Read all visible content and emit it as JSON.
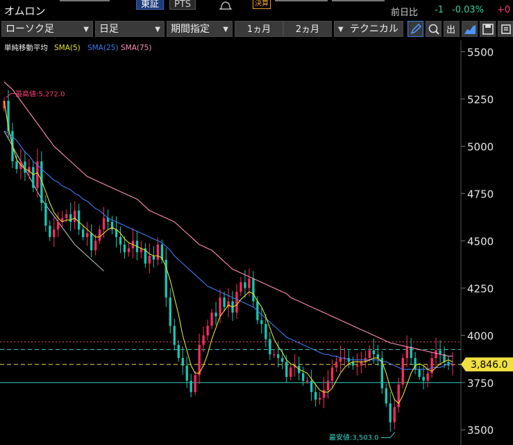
{
  "header": {
    "title": "オムロン",
    "exchange_tabs": [
      "東証",
      "PTS"
    ],
    "badge": "決算",
    "change_label": "前日比",
    "change_value": "-1",
    "change_pct": "-0.03%",
    "change_more": "+0"
  },
  "toolbar": {
    "chart_type": "ローソク足",
    "period": "日足",
    "range_label": "期間指定",
    "range_buttons": [
      "1ヵ月",
      "2ヵ月"
    ],
    "technical": "テクニカル",
    "icons": [
      "pen-icon",
      "search-icon",
      "output-icon",
      "area-chart-icon",
      "save-icon",
      "settings-icon"
    ]
  },
  "chart_data": {
    "type": "candlestick",
    "legend": [
      {
        "label": "単純移動平均",
        "color": "#f0f0f0"
      },
      {
        "label": "SMA(5)",
        "color": "#e8e030"
      },
      {
        "label": "SMA(25)",
        "color": "#3d7cf0"
      },
      {
        "label": "SMA(75)",
        "color": "#ff8fb8"
      }
    ],
    "y_ticks": [
      5500,
      5250,
      5000,
      4750,
      4500,
      4250,
      4000,
      3750,
      3500
    ],
    "ylim": [
      3420,
      5560
    ],
    "high_annotation": "最高値:5,272.0",
    "low_annotation": "最安値:3,503.0",
    "high": 5272,
    "low": 3503,
    "current_price": 3846,
    "current_price_label": "3,846.0",
    "reference_lines": [
      {
        "value": 3965,
        "color": "#ff4d6d",
        "style": "dotted"
      },
      {
        "value": 3925,
        "color": "#35d6c8",
        "style": "dashed"
      },
      {
        "value": 3846,
        "color": "#f0e040",
        "style": "dashed"
      },
      {
        "value": 3750,
        "color": "#35d6c8",
        "style": "solid"
      }
    ],
    "candles_close": [
      5240,
      5080,
      4920,
      4880,
      4920,
      4860,
      4890,
      4780,
      4920,
      4700,
      4580,
      4520,
      4560,
      4600,
      4620,
      4640,
      4600,
      4660,
      4560,
      4520,
      4540,
      4450,
      4500,
      4560,
      4620,
      4600,
      4560,
      4520,
      4480,
      4440,
      4460,
      4500,
      4440,
      4460,
      4380,
      4420,
      4400,
      4480,
      4400,
      4200,
      4050,
      3950,
      3880,
      3840,
      3760,
      3700,
      3790,
      3950,
      4000,
      4050,
      4120,
      4100,
      4200,
      4150,
      4180,
      4120,
      4230,
      4280,
      4250,
      4300,
      4180,
      4080,
      4060,
      3980,
      3900,
      3900,
      3880,
      3860,
      3780,
      3830,
      3840,
      3800,
      3760,
      3760,
      3700,
      3660,
      3670,
      3710,
      3760,
      3830,
      3860,
      3880,
      3880,
      3860,
      3840,
      3840,
      3860,
      3880,
      3920,
      3900,
      3880,
      3720,
      3640,
      3540,
      3620,
      3740,
      3880,
      3940,
      3880,
      3820,
      3780,
      3760,
      3800,
      3880,
      3920,
      3900,
      3860,
      3840,
      3846
    ],
    "sma5": [
      5240,
      5100,
      5000,
      4930,
      4900,
      4880,
      4870,
      4850,
      4860,
      4820,
      4760,
      4700,
      4650,
      4620,
      4600,
      4610,
      4610,
      4620,
      4600,
      4580,
      4560,
      4540,
      4520,
      4520,
      4540,
      4560,
      4570,
      4560,
      4540,
      4510,
      4490,
      4480,
      4470,
      4460,
      4450,
      4430,
      4420,
      4420,
      4410,
      4360,
      4290,
      4200,
      4110,
      4000,
      3920,
      3840,
      3800,
      3800,
      3840,
      3900,
      3980,
      4040,
      4100,
      4130,
      4160,
      4150,
      4160,
      4190,
      4210,
      4230,
      4220,
      4180,
      4150,
      4100,
      4040,
      3980,
      3940,
      3910,
      3870,
      3850,
      3840,
      3820,
      3810,
      3800,
      3770,
      3740,
      3710,
      3700,
      3700,
      3720,
      3760,
      3800,
      3830,
      3850,
      3860,
      3860,
      3860,
      3860,
      3870,
      3880,
      3880,
      3860,
      3800,
      3720,
      3660,
      3640,
      3680,
      3740,
      3800,
      3840,
      3850,
      3840,
      3820,
      3810,
      3830,
      3850,
      3860,
      3870,
      3860
    ],
    "sma25": [
      5080,
      5070,
      5050,
      5030,
      5000,
      4970,
      4950,
      4920,
      4900,
      4880,
      4860,
      4840,
      4820,
      4810,
      4790,
      4780,
      4770,
      4750,
      4740,
      4720,
      4710,
      4690,
      4670,
      4660,
      4640,
      4620,
      4610,
      4600,
      4590,
      4580,
      4570,
      4560,
      4550,
      4540,
      4530,
      4520,
      4510,
      4500,
      4490,
      4470,
      4450,
      4420,
      4400,
      4380,
      4360,
      4340,
      4320,
      4300,
      4280,
      4260,
      4250,
      4240,
      4230,
      4220,
      4210,
      4200,
      4190,
      4180,
      4170,
      4160,
      4150,
      4130,
      4110,
      4090,
      4070,
      4050,
      4030,
      4010,
      3990,
      3980,
      3970,
      3960,
      3950,
      3940,
      3930,
      3920,
      3910,
      3900,
      3900,
      3890,
      3890,
      3880,
      3880,
      3870,
      3870,
      3870,
      3870,
      3870,
      3870,
      3870,
      3870,
      3860,
      3860,
      3850,
      3840,
      3830,
      3820,
      3820,
      3820,
      3820,
      3820,
      3820,
      3820,
      3830,
      3830,
      3830,
      3840,
      3850,
      3850
    ],
    "sma75": [
      5340,
      5320,
      5300,
      5270,
      5240,
      5210,
      5180,
      5150,
      5120,
      5090,
      5060,
      5030,
      5000,
      4980,
      4960,
      4940,
      4920,
      4900,
      4880,
      4860,
      4840,
      4830,
      4820,
      4810,
      4800,
      4790,
      4780,
      4770,
      4760,
      4750,
      4740,
      4730,
      4720,
      4700,
      4680,
      4660,
      4650,
      4640,
      4630,
      4620,
      4610,
      4600,
      4580,
      4560,
      4540,
      4520,
      4500,
      4480,
      4470,
      4460,
      4450,
      4430,
      4410,
      4390,
      4370,
      4350,
      4340,
      4330,
      4320,
      4310,
      4300,
      4290,
      4280,
      4270,
      4260,
      4250,
      4240,
      4230,
      4220,
      4200,
      4190,
      4180,
      4170,
      4160,
      4150,
      4140,
      4130,
      4120,
      4110,
      4100,
      4090,
      4080,
      4070,
      4060,
      4050,
      4040,
      4030,
      4020,
      4010,
      4000,
      3990,
      3980,
      3970,
      3960,
      3955,
      3950,
      3945,
      3940,
      3935,
      3930,
      3925,
      3920,
      3915,
      3910,
      3905,
      3900,
      3895,
      3890,
      3890
    ],
    "lower_band": [
      5080,
      5040,
      5000,
      4960,
      4920,
      4880,
      4840,
      4800,
      4760,
      4720,
      4690,
      4660,
      4630,
      4600,
      4570,
      4540,
      4510,
      4480,
      4460,
      4440,
      4420,
      4400,
      4380,
      4360,
      4340
    ]
  }
}
